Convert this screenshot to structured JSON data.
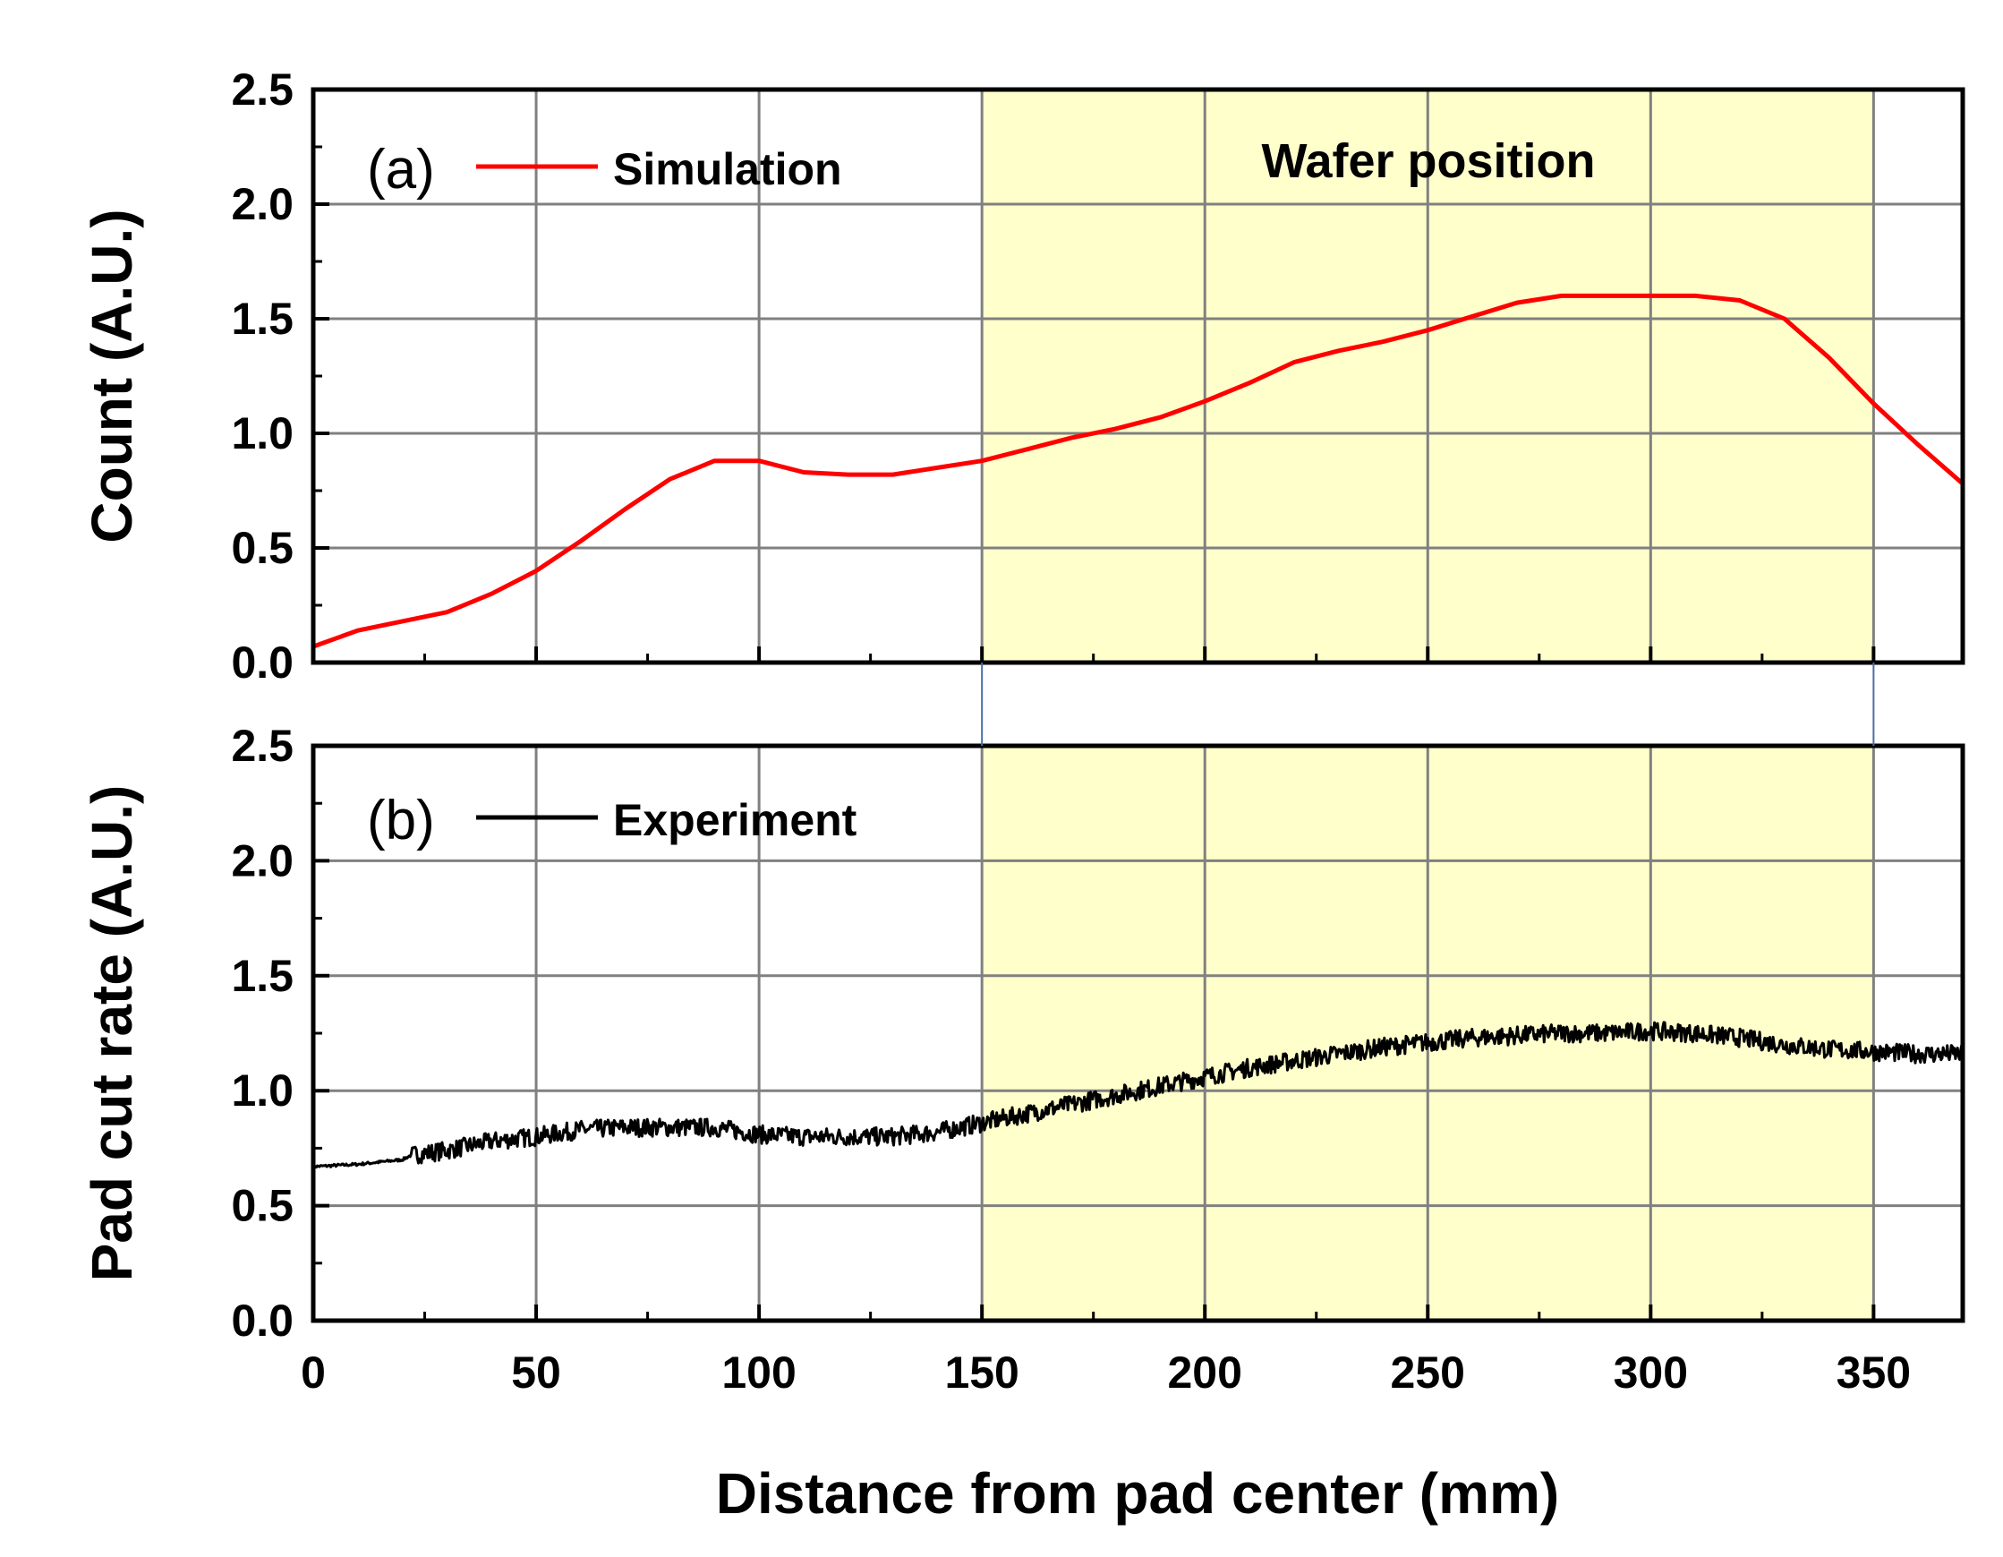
{
  "chart_data": [
    {
      "type": "line",
      "panel_label": "(a)",
      "title": "",
      "xlabel": "Distance from pad center (mm)",
      "ylabel": "Count (A.U.)",
      "xlim": [
        0,
        370
      ],
      "ylim": [
        0,
        2.5
      ],
      "x_ticks": [
        "0",
        "50",
        "100",
        "150",
        "200",
        "250",
        "300",
        "350"
      ],
      "y_ticks": [
        "0.0",
        "0.5",
        "1.0",
        "1.5",
        "2.0",
        "2.5"
      ],
      "grid": true,
      "legend_position": "top-left",
      "shaded_region": {
        "label": "Wafer position",
        "x_range": [
          150,
          350
        ],
        "color": "#ffffcc"
      },
      "series": [
        {
          "name": "Simulation",
          "color": "#ff0000",
          "x": [
            0,
            10,
            20,
            30,
            40,
            50,
            60,
            70,
            80,
            90,
            100,
            110,
            120,
            130,
            140,
            150,
            160,
            170,
            180,
            190,
            200,
            210,
            220,
            230,
            240,
            250,
            260,
            270,
            280,
            290,
            300,
            310,
            320,
            330,
            340,
            350,
            360,
            370
          ],
          "values": [
            0.07,
            0.14,
            0.18,
            0.22,
            0.3,
            0.4,
            0.53,
            0.67,
            0.8,
            0.88,
            0.88,
            0.83,
            0.82,
            0.82,
            0.85,
            0.88,
            0.93,
            0.98,
            1.02,
            1.07,
            1.14,
            1.22,
            1.31,
            1.36,
            1.4,
            1.45,
            1.51,
            1.57,
            1.6,
            1.6,
            1.6,
            1.6,
            1.58,
            1.5,
            1.33,
            1.13,
            0.95,
            0.78
          ]
        }
      ]
    },
    {
      "type": "line",
      "panel_label": "(b)",
      "title": "",
      "xlabel": "Distance from pad center (mm)",
      "ylabel": "Pad cut rate (A.U.)",
      "xlim": [
        0,
        370
      ],
      "ylim": [
        0,
        2.5
      ],
      "x_ticks": [
        "0",
        "50",
        "100",
        "150",
        "200",
        "250",
        "300",
        "350"
      ],
      "y_ticks": [
        "0.0",
        "0.5",
        "1.0",
        "1.5",
        "2.0",
        "2.5"
      ],
      "grid": true,
      "legend_position": "top-left",
      "shaded_region": {
        "label": "",
        "x_range": [
          150,
          350
        ],
        "color": "#ffffcc"
      },
      "series": [
        {
          "name": "Experiment",
          "color": "#000000",
          "noise_start_x": 22,
          "noise_amplitude": 0.04,
          "x": [
            0,
            10,
            20,
            22,
            30,
            40,
            50,
            60,
            70,
            80,
            90,
            100,
            110,
            120,
            130,
            140,
            150,
            160,
            170,
            180,
            190,
            200,
            210,
            220,
            230,
            240,
            250,
            260,
            270,
            280,
            290,
            300,
            310,
            320,
            330,
            340,
            350,
            360,
            370
          ],
          "values": [
            0.67,
            0.68,
            0.7,
            0.72,
            0.74,
            0.78,
            0.8,
            0.83,
            0.84,
            0.84,
            0.84,
            0.81,
            0.8,
            0.8,
            0.8,
            0.82,
            0.86,
            0.9,
            0.94,
            0.98,
            1.02,
            1.06,
            1.1,
            1.13,
            1.16,
            1.19,
            1.21,
            1.23,
            1.24,
            1.25,
            1.25,
            1.26,
            1.25,
            1.23,
            1.2,
            1.18,
            1.17,
            1.16,
            1.16
          ]
        }
      ]
    }
  ]
}
